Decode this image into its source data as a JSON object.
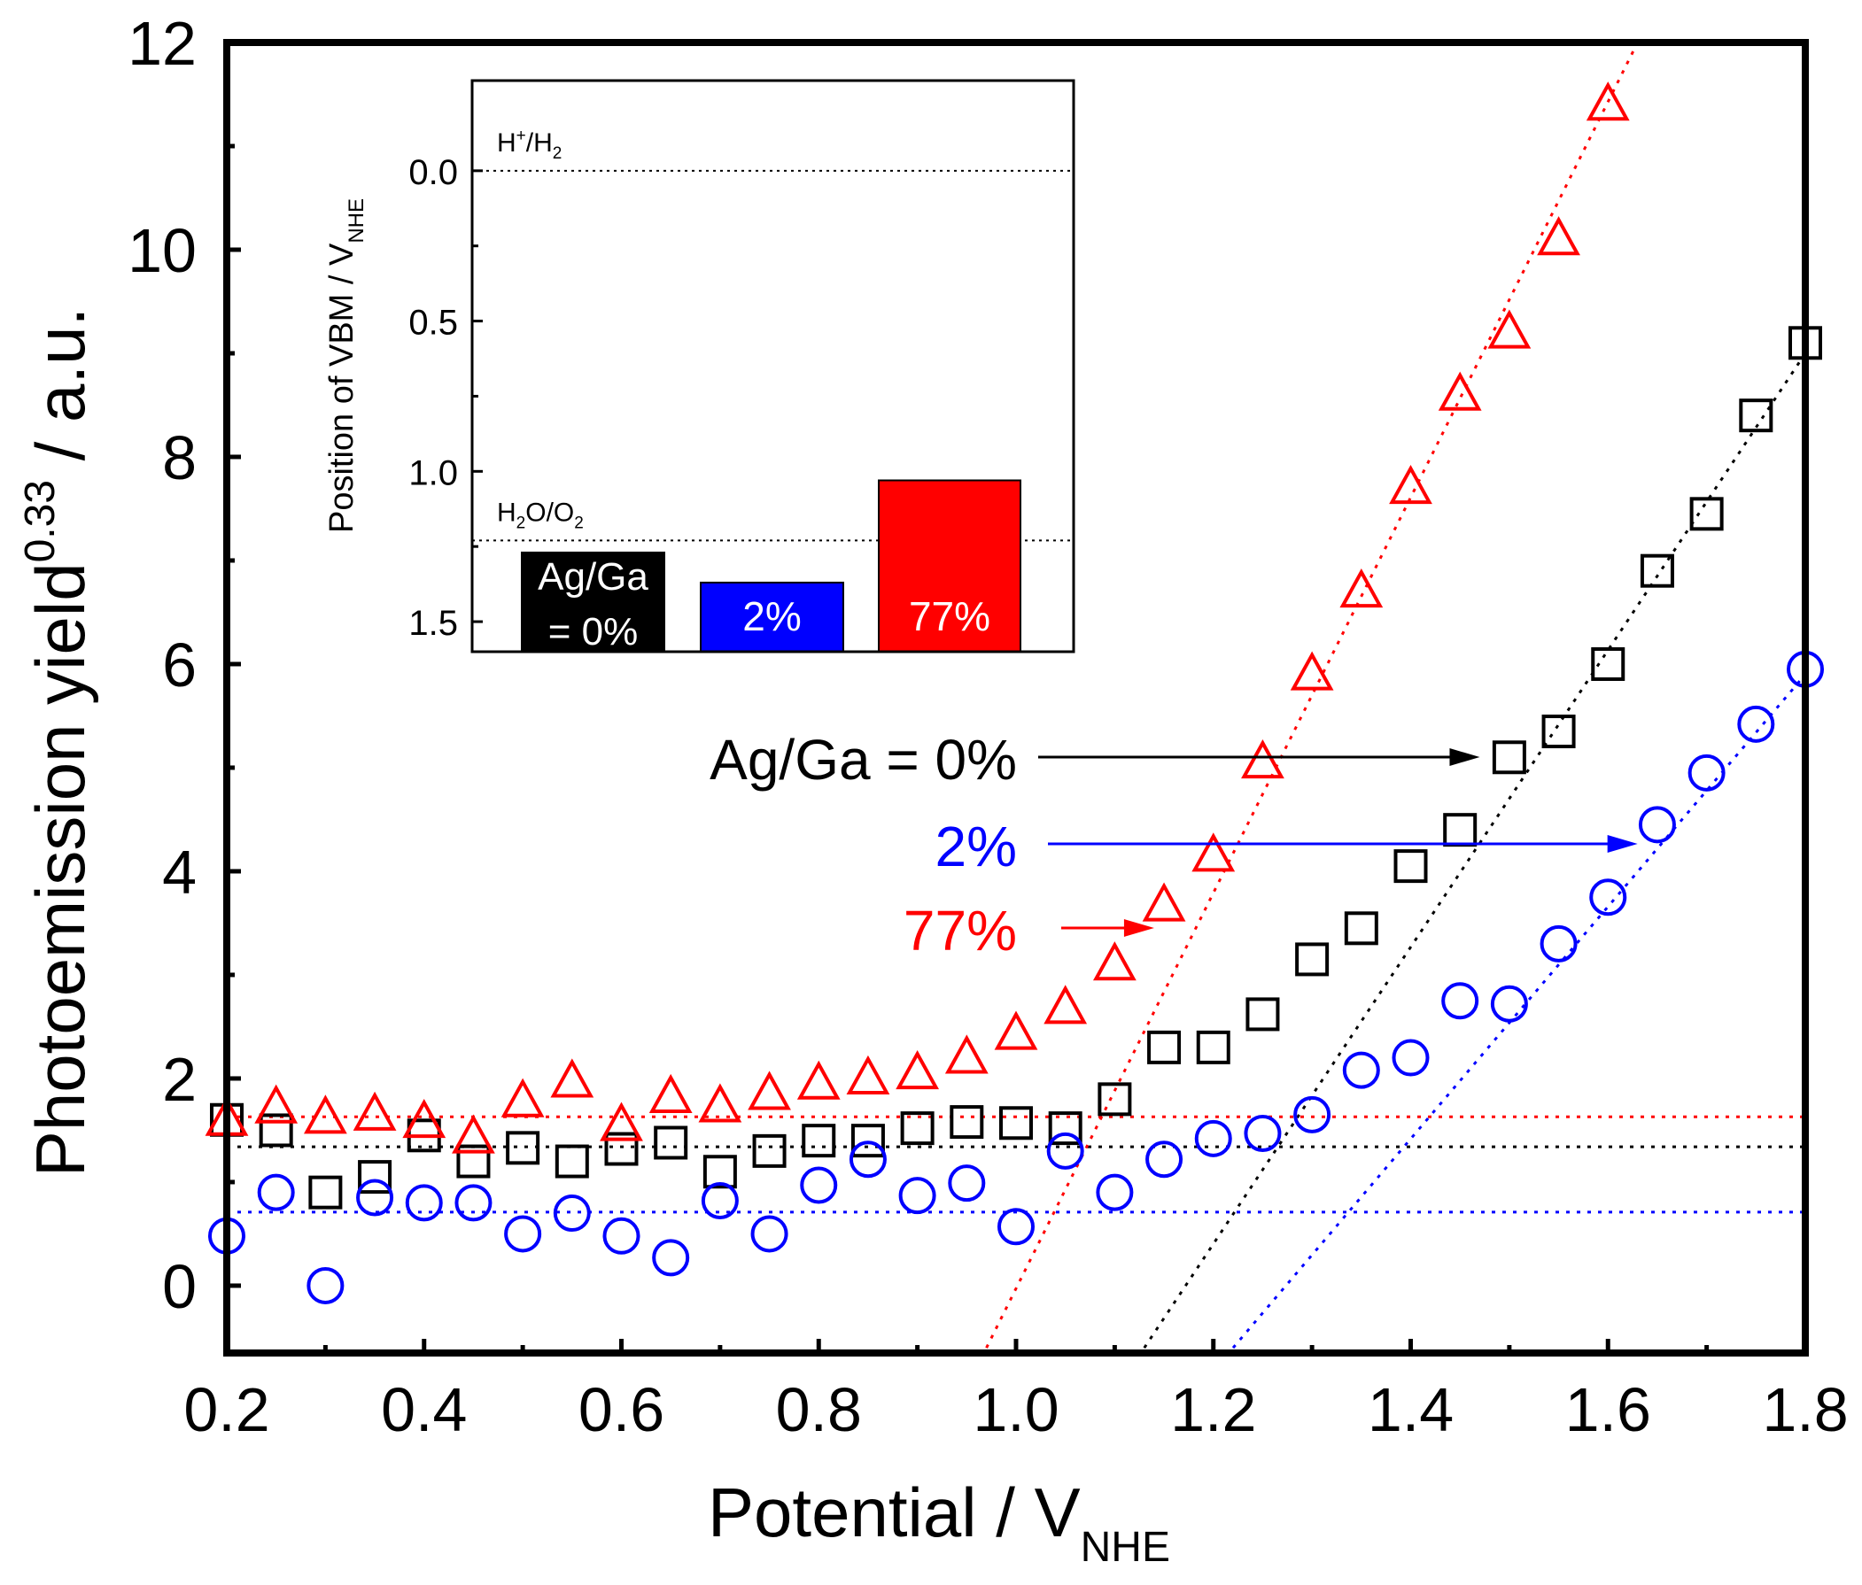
{
  "chart_data": {
    "type": "scatter",
    "xlabel": "Potential / V",
    "xlabel_sub": "NHE",
    "ylabel_pre": "Photoemission yield",
    "ylabel_sup": "0.33",
    "ylabel_post": " / a.u.",
    "xlim": [
      0.2,
      1.8
    ],
    "ylim": [
      -0.65,
      12
    ],
    "xticks": [
      "0.2",
      "0.4",
      "0.6",
      "0.8",
      "1.0",
      "1.2",
      "1.4",
      "1.6",
      "1.8"
    ],
    "yticks": [
      "0",
      "2",
      "4",
      "6",
      "8",
      "10",
      "12"
    ],
    "series": [
      {
        "name": "Ag/Ga = 0%",
        "marker": "square",
        "color": "#000000",
        "x": [
          0.2,
          0.25,
          0.3,
          0.35,
          0.4,
          0.45,
          0.5,
          0.55,
          0.6,
          0.65,
          0.7,
          0.75,
          0.8,
          0.85,
          0.9,
          0.95,
          1.0,
          1.05,
          1.1,
          1.15,
          1.2,
          1.25,
          1.3,
          1.35,
          1.4,
          1.45,
          1.5,
          1.55,
          1.6,
          1.65,
          1.7,
          1.75,
          1.8
        ],
        "y": [
          1.6,
          1.5,
          0.9,
          1.05,
          1.45,
          1.2,
          1.33,
          1.2,
          1.32,
          1.38,
          1.1,
          1.3,
          1.4,
          1.4,
          1.52,
          1.58,
          1.57,
          1.52,
          1.8,
          2.3,
          2.3,
          2.62,
          3.15,
          3.45,
          4.05,
          4.4,
          5.1,
          5.35,
          6.0,
          6.9,
          7.45,
          8.4,
          9.1
        ],
        "baseline": 1.34,
        "fit_line": [
          [
            1.13,
            -0.6
          ],
          [
            1.8,
            9.0
          ]
        ],
        "label": "Ag/Ga = 0%",
        "arrow_to_x": 1.47
      },
      {
        "name": "2%",
        "marker": "circle",
        "color": "#0000ff",
        "x": [
          0.2,
          0.25,
          0.3,
          0.35,
          0.4,
          0.45,
          0.5,
          0.55,
          0.6,
          0.65,
          0.7,
          0.75,
          0.8,
          0.85,
          0.9,
          0.95,
          1.0,
          1.05,
          1.1,
          1.15,
          1.2,
          1.25,
          1.3,
          1.35,
          1.4,
          1.45,
          1.5,
          1.55,
          1.6,
          1.65,
          1.7,
          1.75,
          1.8
        ],
        "y": [
          0.48,
          0.9,
          0.0,
          0.85,
          0.8,
          0.8,
          0.5,
          0.7,
          0.48,
          0.27,
          0.82,
          0.5,
          0.97,
          1.22,
          0.87,
          0.99,
          0.57,
          1.3,
          0.9,
          1.22,
          1.42,
          1.47,
          1.65,
          2.08,
          2.2,
          2.75,
          2.72,
          3.3,
          3.75,
          4.45,
          4.95,
          5.42,
          5.95
        ],
        "baseline": 0.71,
        "fit_line": [
          [
            1.22,
            -0.6
          ],
          [
            1.8,
            5.9
          ]
        ],
        "label": "2%",
        "arrow_to_x": 1.63
      },
      {
        "name": "77%",
        "marker": "triangle",
        "color": "#ff0000",
        "x": [
          0.2,
          0.25,
          0.3,
          0.35,
          0.4,
          0.45,
          0.5,
          0.55,
          0.6,
          0.65,
          0.7,
          0.75,
          0.8,
          0.85,
          0.9,
          0.95,
          1.0,
          1.05,
          1.1,
          1.15,
          1.2,
          1.25,
          1.3,
          1.35,
          1.4,
          1.45,
          1.5,
          1.55,
          1.6
        ],
        "y": [
          1.6,
          1.72,
          1.62,
          1.65,
          1.58,
          1.43,
          1.78,
          1.97,
          1.55,
          1.82,
          1.73,
          1.85,
          1.95,
          2.0,
          2.05,
          2.2,
          2.43,
          2.68,
          3.1,
          3.67,
          4.15,
          5.05,
          5.9,
          6.7,
          7.7,
          8.6,
          9.2,
          10.1,
          11.4
        ],
        "baseline": 1.63,
        "fit_line": [
          [
            0.97,
            -0.6
          ],
          [
            1.63,
            12.0
          ]
        ],
        "label": "77%",
        "arrow_to_x": 1.14
      }
    ],
    "inset": {
      "type": "bar",
      "ylabel_pre": "Position of VBM / V",
      "ylabel_sub": "NHE",
      "ylim_top": -0.3,
      "ylim_bottom": 1.6,
      "yticks": [
        "0.0",
        "0.5",
        "1.0",
        "1.5"
      ],
      "reference_lines": [
        {
          "value": 0.0,
          "label_main": "H",
          "label_sup": "+",
          "label_mid": "/H",
          "label_sub": "2"
        },
        {
          "value": 1.23,
          "label_main": "H",
          "label_sub1": "2",
          "label_mid": "O/O",
          "label_sub": "2"
        }
      ],
      "bars": [
        {
          "label_line1": "Ag/Ga",
          "label_line2": "= 0%",
          "value": 1.27,
          "color": "#000000"
        },
        {
          "label_line1": "2%",
          "label_line2": "",
          "value": 1.37,
          "color": "#0000ff"
        },
        {
          "label_line1": "77%",
          "label_line2": "",
          "value": 1.03,
          "color": "#ff0000"
        }
      ]
    }
  }
}
